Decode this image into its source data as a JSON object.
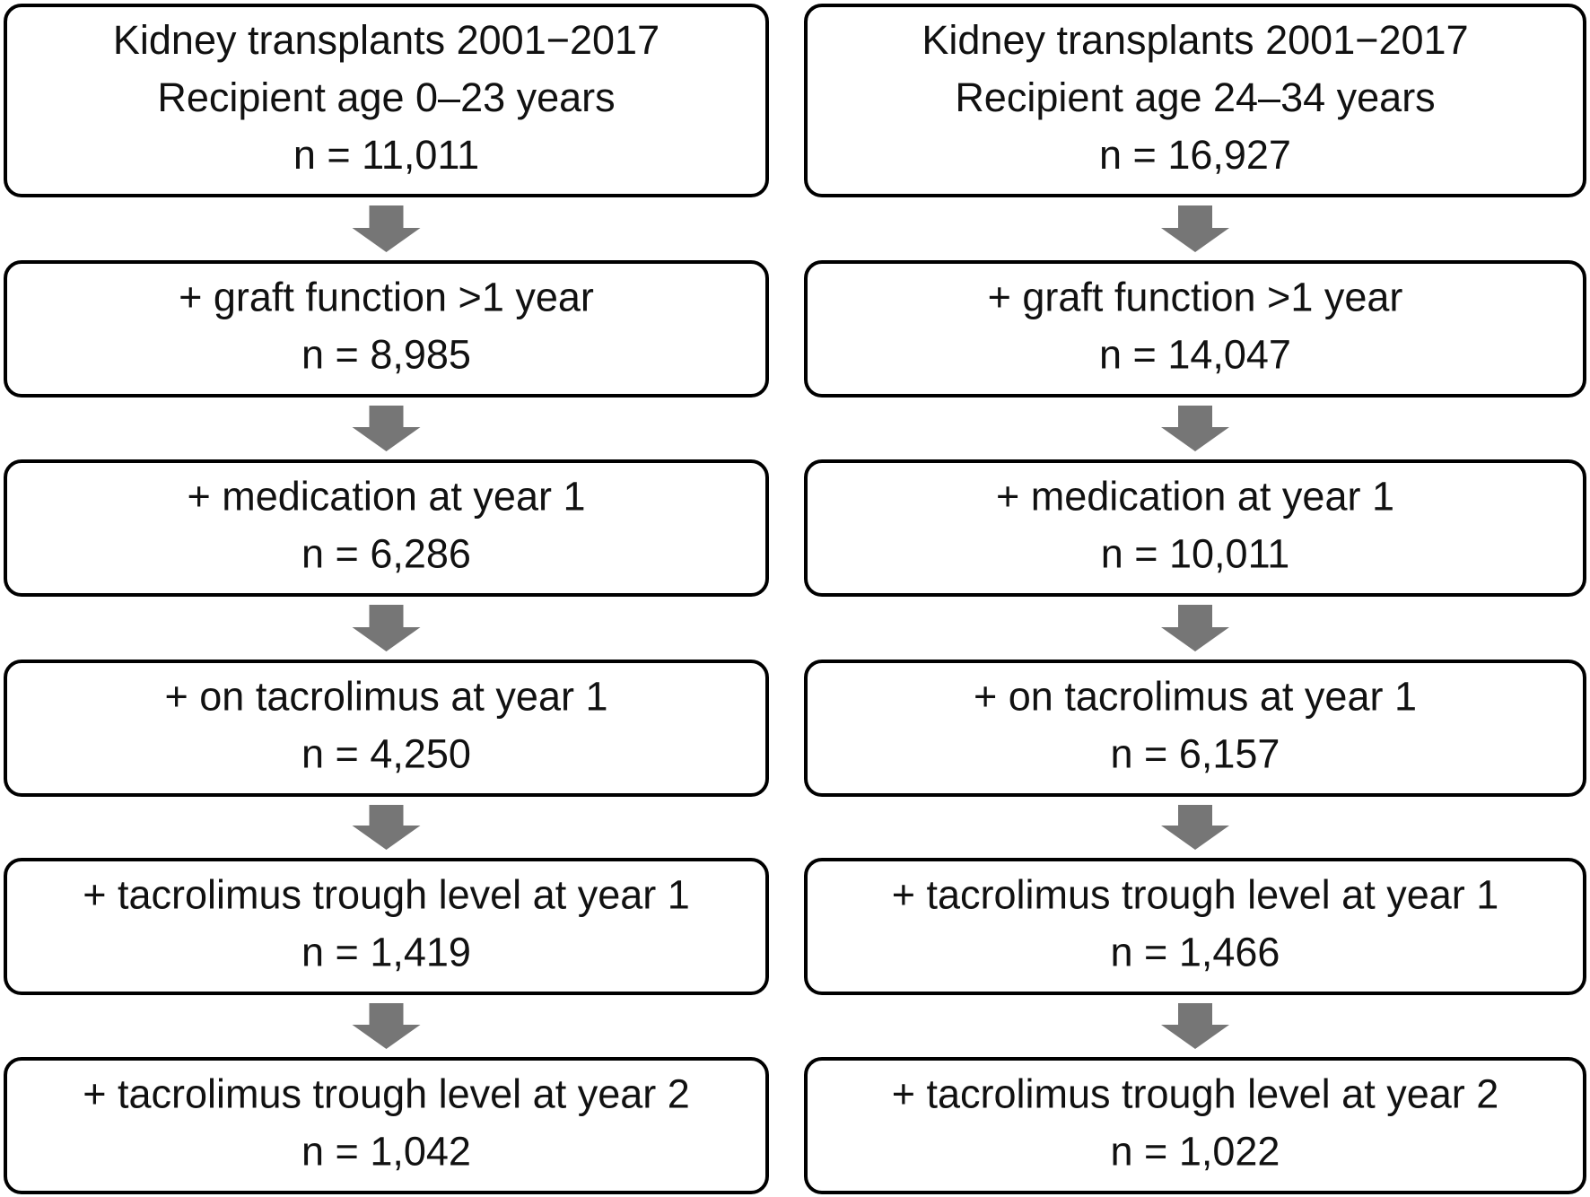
{
  "columns": [
    {
      "boxes": [
        {
          "lines": [
            "Kidney transplants 2001−2017",
            "Recipient age 0–23 years",
            "n = 11,011"
          ]
        },
        {
          "lines": [
            "+ graft function >1 year",
            "n = 8,985"
          ]
        },
        {
          "lines": [
            "+ medication at year 1",
            "n = 6,286"
          ]
        },
        {
          "lines": [
            "+ on tacrolimus at year 1",
            "n = 4,250"
          ]
        },
        {
          "lines": [
            "+ tacrolimus trough level at year 1",
            "n = 1,419"
          ]
        },
        {
          "lines": [
            "+ tacrolimus trough level at year 2",
            "n = 1,042"
          ]
        }
      ]
    },
    {
      "boxes": [
        {
          "lines": [
            "Kidney transplants 2001−2017",
            "Recipient age 24–34 years",
            "n = 16,927"
          ]
        },
        {
          "lines": [
            "+ graft function >1 year",
            "n = 14,047"
          ]
        },
        {
          "lines": [
            "+ medication at year 1",
            "n = 10,011"
          ]
        },
        {
          "lines": [
            "+ on tacrolimus at year 1",
            "n = 6,157"
          ]
        },
        {
          "lines": [
            "+ tacrolimus trough level at year 1",
            "n = 1,466"
          ]
        },
        {
          "lines": [
            "+ tacrolimus trough level at year 2",
            "n = 1,022"
          ]
        }
      ]
    }
  ]
}
